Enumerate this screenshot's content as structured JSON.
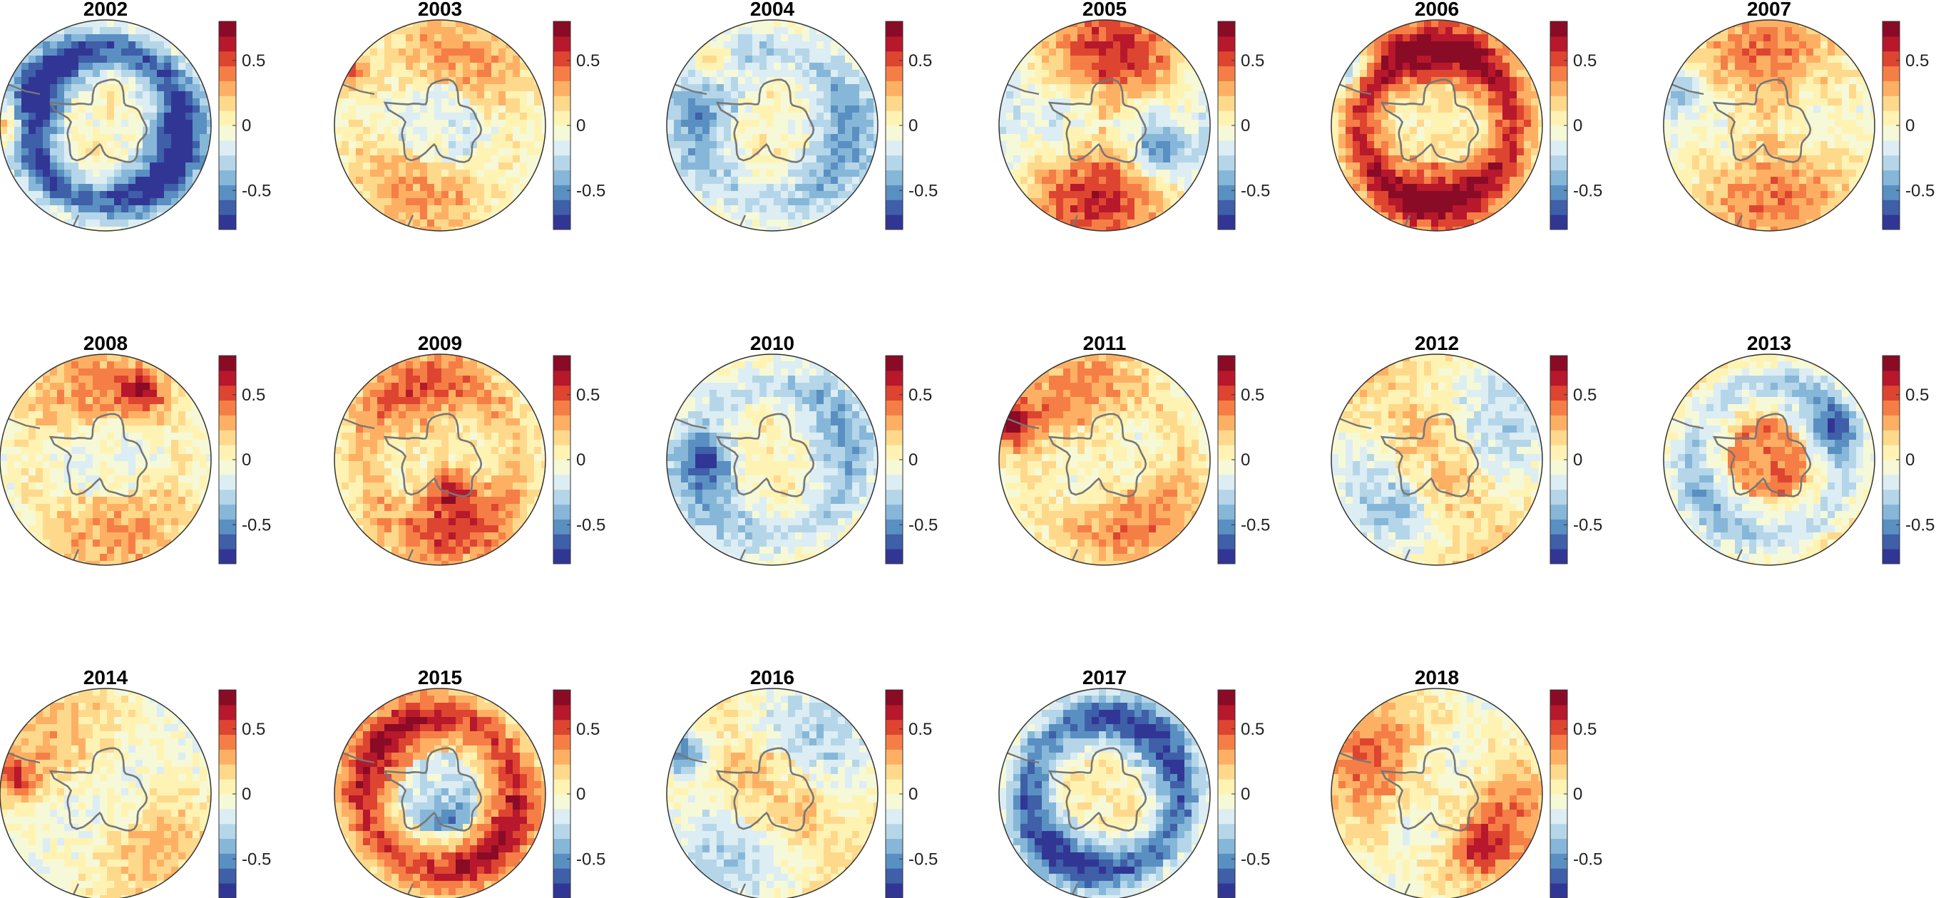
{
  "chart_data": {
    "type": "heatmap",
    "projection": "south-polar stereographic (circular map, Antarctica at center)",
    "layout": {
      "rows": 3,
      "cols": 6,
      "panel_count": 17
    },
    "colormap": {
      "name": "diverging red-yellow-blue",
      "colors": [
        "#313695",
        "#3f5fa8",
        "#5a8fc2",
        "#86b7d8",
        "#b5d6e8",
        "#dcedf4",
        "#f5f9d8",
        "#fff3b4",
        "#fed98c",
        "#fdb064",
        "#f57e46",
        "#dd4530",
        "#b7182c",
        "#8a0b25"
      ],
      "range": [
        -0.8,
        0.8
      ]
    },
    "colorbar": {
      "ticks": [
        0.5,
        0,
        -0.5
      ],
      "tick_labels": [
        "0.5",
        "0",
        "-0.5"
      ]
    },
    "panels": [
      {
        "title": "2002",
        "pattern": "strong negative ring (blue) around Antarctica, warm patch far left"
      },
      {
        "title": "2003",
        "pattern": "mostly weak positive, warm near Antarctic Peninsula"
      },
      {
        "title": "2004",
        "pattern": "weak negative ring, warm patch north of peninsula"
      },
      {
        "title": "2005",
        "pattern": "positive on west, negative band on east"
      },
      {
        "title": "2006",
        "pattern": "strong positive ring (red) around continent"
      },
      {
        "title": "2007",
        "pattern": "mostly weak positive, some blue on left"
      },
      {
        "title": "2008",
        "pattern": "weak positive, warm patch upper right"
      },
      {
        "title": "2009",
        "pattern": "positive, warm near peninsula and south"
      },
      {
        "title": "2010",
        "pattern": "weak negative ring on left"
      },
      {
        "title": "2011",
        "pattern": "weak positive, strong warm near peninsula"
      },
      {
        "title": "2012",
        "pattern": "mixed, negative patches"
      },
      {
        "title": "2013",
        "pattern": "inner positive ring, outer negative ring"
      },
      {
        "title": "2014",
        "pattern": "mostly neutral to weak positive"
      },
      {
        "title": "2015",
        "pattern": "strong positive outer ring, negative interior"
      },
      {
        "title": "2016",
        "pattern": "mixed, strong negative patch near peninsula"
      },
      {
        "title": "2017",
        "pattern": "strong negative ring"
      },
      {
        "title": "2018",
        "pattern": "weak positive, mixed"
      }
    ]
  }
}
